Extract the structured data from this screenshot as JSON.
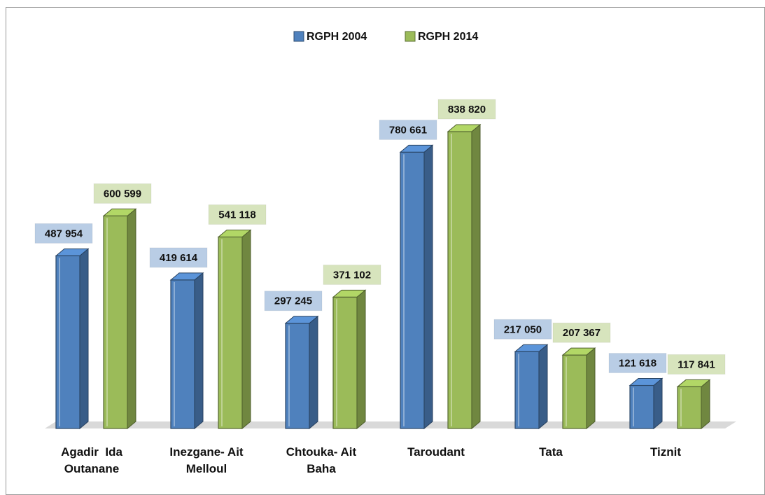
{
  "chart_data": {
    "type": "bar3d",
    "categories": [
      "Agadir  Ida Outanane",
      "Inezgane- Ait Melloul",
      "Chtouka- Ait Baha",
      "Taroudant",
      "Tata",
      "Tiznit"
    ],
    "series": [
      {
        "name": "RGPH 2004",
        "color": "#4f81bd",
        "label_bg": "#b9cde5",
        "values": [
          487954,
          419614,
          297245,
          780661,
          217050,
          121618
        ],
        "value_labels": [
          "487 954",
          "419 614",
          "297 245",
          "780 661",
          "217 050",
          "121 618"
        ]
      },
      {
        "name": "RGPH 2014",
        "color": "#9bbb59",
        "label_bg": "#d7e4bd",
        "values": [
          600599,
          541118,
          371102,
          838820,
          207367,
          117841
        ],
        "value_labels": [
          "600 599",
          "541 118",
          "371 102",
          "838 820",
          "207 367",
          "117 841"
        ]
      }
    ],
    "legend": "top"
  }
}
